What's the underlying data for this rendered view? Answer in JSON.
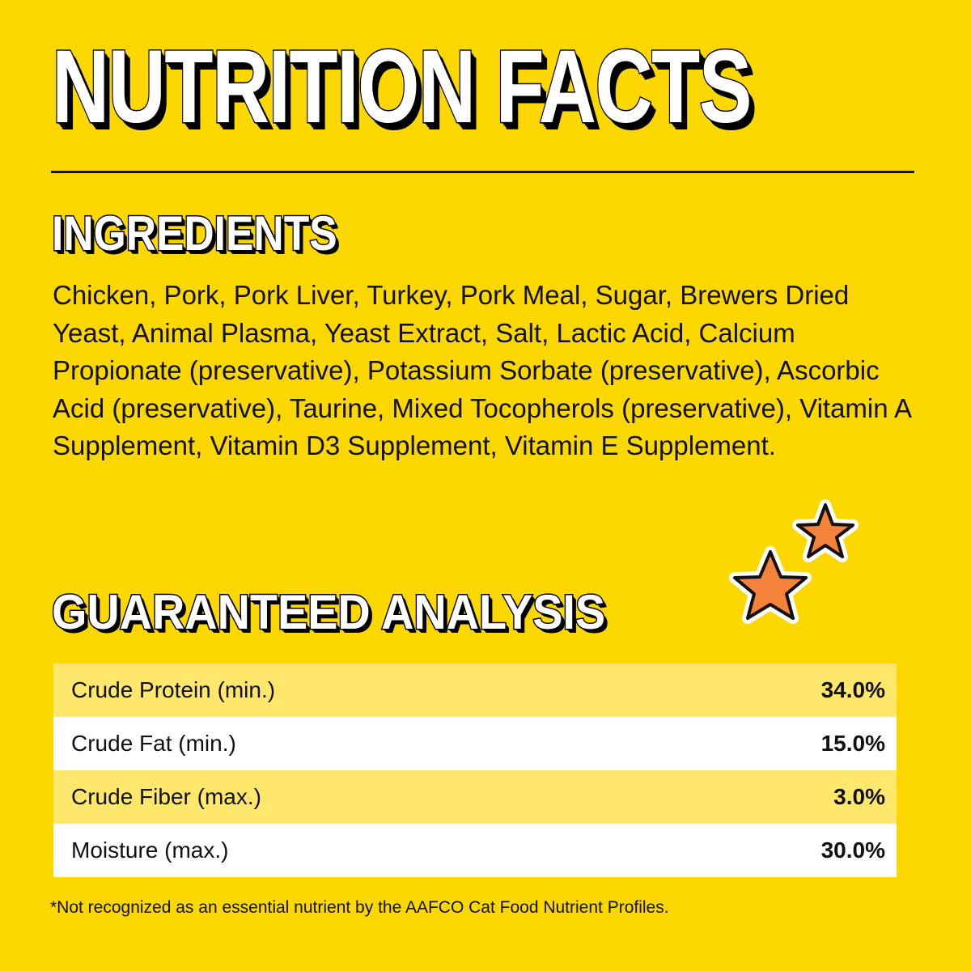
{
  "title": "NUTRITION FACTS",
  "ingredients": {
    "heading": "INGREDIENTS",
    "text": "Chicken, Pork, Pork Liver, Turkey, Pork Meal, Sugar, Brewers Dried Yeast, Animal Plasma, Yeast Extract, Salt, Lactic Acid, Calcium Propionate (preservative), Potassium Sorbate (preservative), Ascorbic Acid (preservative), Taurine, Mixed Tocopherols (preservative), Vitamin A Supplement, Vitamin D3 Supplement, Vitamin E Supplement."
  },
  "analysis": {
    "heading": "GUARANTEED ANALYSIS",
    "rows": [
      {
        "label": "Crude Protein (min.)",
        "value": "34.0%"
      },
      {
        "label": "Crude Fat (min.)",
        "value": "15.0%"
      },
      {
        "label": "Crude Fiber (max.)",
        "value": "3.0%"
      },
      {
        "label": "Moisture (max.)",
        "value": "30.0%"
      }
    ]
  },
  "footnote": "*Not recognized as an essential nutrient by the AAFCO Cat Food Nutrient Profiles.",
  "decorations": {
    "icons": [
      "star-icon",
      "star-icon"
    ],
    "star_color": "#F5823A"
  },
  "colors": {
    "background": "#FDD700",
    "row_highlight": "#FEE76A",
    "row_plain": "#FFFFFF"
  }
}
